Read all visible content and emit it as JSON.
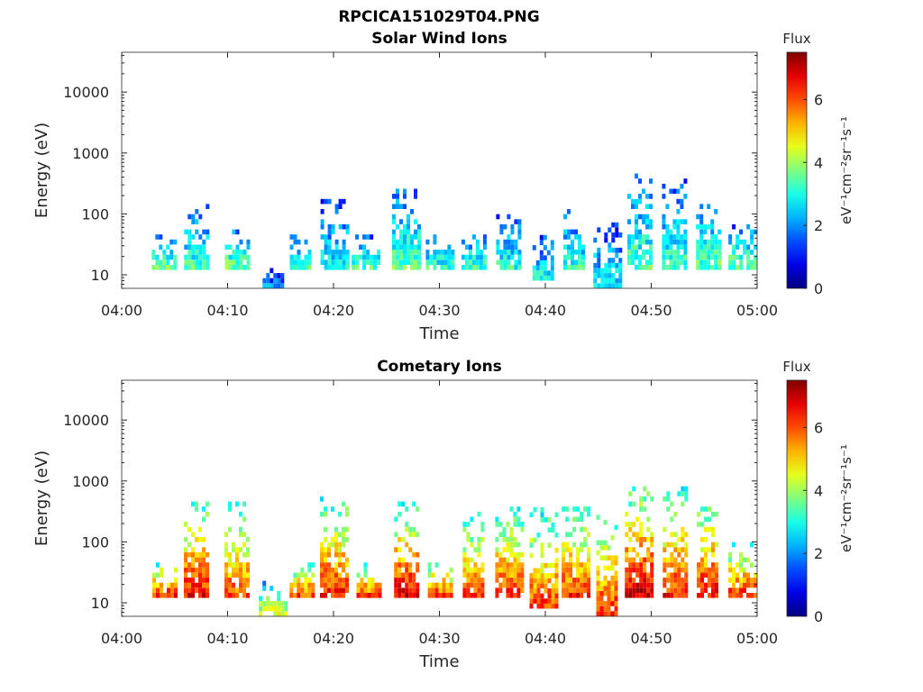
{
  "figure_title": "RPCICA151029T04.PNG",
  "chart_data": [
    {
      "type": "heatmap",
      "title": "Solar Wind Ions",
      "xlabel": "Time",
      "ylabel": "Energy (eV)",
      "yscale": "log",
      "ylim": [
        6,
        45000
      ],
      "xlim": [
        "04:00",
        "05:00"
      ],
      "x_ticks": [
        "04:00",
        "04:10",
        "04:20",
        "04:30",
        "04:40",
        "04:50",
        "05:00"
      ],
      "y_ticks": [
        "10",
        "100",
        "1000",
        "10000"
      ],
      "colorbar": {
        "title": "Flux",
        "label": "eV⁻¹cm⁻²sr⁻¹s⁻¹",
        "range": [
          0,
          7.5
        ],
        "ticks": [
          "0",
          "2",
          "4",
          "6"
        ],
        "colormap": "jet"
      },
      "grid": false,
      "bursts": [
        {
          "t": 4.0,
          "e": [
            12,
            45
          ],
          "flux": 3.6
        },
        {
          "t": 7.0,
          "e": [
            12,
            120
          ],
          "flux": 3.3
        },
        {
          "t": 10.8,
          "e": [
            12,
            60
          ],
          "flux": 3.6
        },
        {
          "t": 14.2,
          "e": [
            6,
            15
          ],
          "flux": 1.8
        },
        {
          "t": 16.8,
          "e": [
            12,
            40
          ],
          "flux": 3.4
        },
        {
          "t": 20.0,
          "e": [
            12,
            170
          ],
          "flux": 2.8
        },
        {
          "t": 23.0,
          "e": [
            12,
            40
          ],
          "flux": 3.3
        },
        {
          "t": 26.8,
          "e": [
            12,
            230
          ],
          "flux": 3.6
        },
        {
          "t": 30.0,
          "e": [
            12,
            40
          ],
          "flux": 3.2
        },
        {
          "t": 33.2,
          "e": [
            12,
            45
          ],
          "flux": 3.3
        },
        {
          "t": 36.5,
          "e": [
            12,
            90
          ],
          "flux": 3.1
        },
        {
          "t": 39.8,
          "e": [
            8,
            40
          ],
          "flux": 3.0
        },
        {
          "t": 42.7,
          "e": [
            12,
            100
          ],
          "flux": 3.1
        },
        {
          "t": 45.8,
          "e": [
            6,
            60
          ],
          "flux": 2.8
        },
        {
          "t": 48.8,
          "e": [
            12,
            400
          ],
          "flux": 3.4
        },
        {
          "t": 52.2,
          "e": [
            12,
            330
          ],
          "flux": 3.3
        },
        {
          "t": 55.3,
          "e": [
            12,
            160
          ],
          "flux": 3.5
        },
        {
          "t": 58.5,
          "e": [
            12,
            60
          ],
          "flux": 3.6
        }
      ]
    },
    {
      "type": "heatmap",
      "title": "Cometary Ions",
      "xlabel": "Time",
      "ylabel": "Energy (eV)",
      "yscale": "log",
      "ylim": [
        6,
        45000
      ],
      "xlim": [
        "04:00",
        "05:00"
      ],
      "x_ticks": [
        "04:00",
        "04:10",
        "04:20",
        "04:30",
        "04:40",
        "04:50",
        "05:00"
      ],
      "y_ticks": [
        "10",
        "100",
        "1000",
        "10000"
      ],
      "colorbar": {
        "title": "Flux",
        "label": "eV⁻¹cm⁻²sr⁻¹s⁻¹",
        "range": [
          0,
          7.5
        ],
        "ticks": [
          "0",
          "2",
          "4",
          "6"
        ],
        "colormap": "jet"
      },
      "grid": false,
      "bursts": [
        {
          "t": 4.0,
          "e": [
            12,
            45
          ],
          "flux": 6.3
        },
        {
          "t": 7.0,
          "e": [
            12,
            450
          ],
          "flux": 6.5
        },
        {
          "t": 10.8,
          "e": [
            12,
            400
          ],
          "flux": 6.0
        },
        {
          "t": 14.2,
          "e": [
            6,
            20
          ],
          "flux": 4.5
        },
        {
          "t": 17.0,
          "e": [
            12,
            45
          ],
          "flux": 6.0
        },
        {
          "t": 20.0,
          "e": [
            12,
            500
          ],
          "flux": 6.4
        },
        {
          "t": 23.2,
          "e": [
            12,
            40
          ],
          "flux": 6.2
        },
        {
          "t": 26.8,
          "e": [
            12,
            380
          ],
          "flux": 6.8
        },
        {
          "t": 30.0,
          "e": [
            12,
            45
          ],
          "flux": 6.2
        },
        {
          "t": 33.2,
          "e": [
            12,
            280
          ],
          "flux": 6.0
        },
        {
          "t": 36.5,
          "e": [
            12,
            330
          ],
          "flux": 6.3
        },
        {
          "t": 39.8,
          "e": [
            8,
            330
          ],
          "flux": 6.2
        },
        {
          "t": 42.8,
          "e": [
            12,
            330
          ],
          "flux": 6.3
        },
        {
          "t": 45.8,
          "e": [
            6,
            260
          ],
          "flux": 6.4
        },
        {
          "t": 48.8,
          "e": [
            12,
            700
          ],
          "flux": 7.0
        },
        {
          "t": 52.2,
          "e": [
            12,
            700
          ],
          "flux": 6.4
        },
        {
          "t": 55.3,
          "e": [
            12,
            500
          ],
          "flux": 6.6
        },
        {
          "t": 58.5,
          "e": [
            12,
            90
          ],
          "flux": 6.3
        }
      ]
    }
  ]
}
